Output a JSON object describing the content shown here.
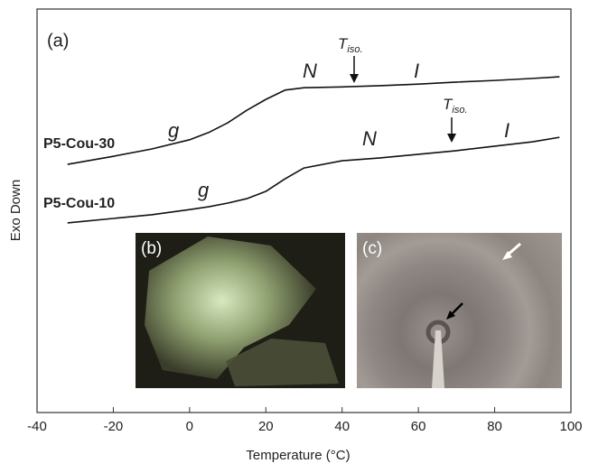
{
  "chart_data": {
    "type": "line",
    "x_label": "Temperature (°C)",
    "y_label": "Exo Down",
    "x": [
      -32,
      -20,
      -10,
      0,
      5,
      10,
      15,
      20,
      25,
      30,
      40,
      50,
      60,
      70,
      80,
      90,
      97
    ],
    "series": [
      {
        "name": "P5-Cou-30",
        "color": "#111111",
        "values": [
          61.5,
          63.5,
          65.3,
          67.6,
          69.4,
          71.8,
          74.9,
          77.6,
          79.9,
          80.5,
          80.7,
          81.0,
          81.4,
          81.9,
          82.3,
          82.8,
          83.2
        ]
      },
      {
        "name": "P5-Cou-10",
        "color": "#111111",
        "values": [
          47.0,
          48.1,
          49.0,
          50.3,
          51.0,
          51.9,
          53.0,
          54.8,
          57.9,
          60.6,
          62.4,
          63.1,
          64.0,
          64.9,
          66.0,
          67.1,
          68.2
        ]
      }
    ],
    "xlim": [
      -40,
      100
    ],
    "xticks": [
      -40,
      -20,
      0,
      20,
      40,
      60,
      80,
      100
    ],
    "ylim": [
      0,
      100
    ],
    "annotations": {
      "panel_a": "(a)",
      "panel_b": "(b)",
      "panel_c": "(c)",
      "g": "g",
      "N": "N",
      "I": "I",
      "T": "T",
      "iso": "iso."
    }
  }
}
